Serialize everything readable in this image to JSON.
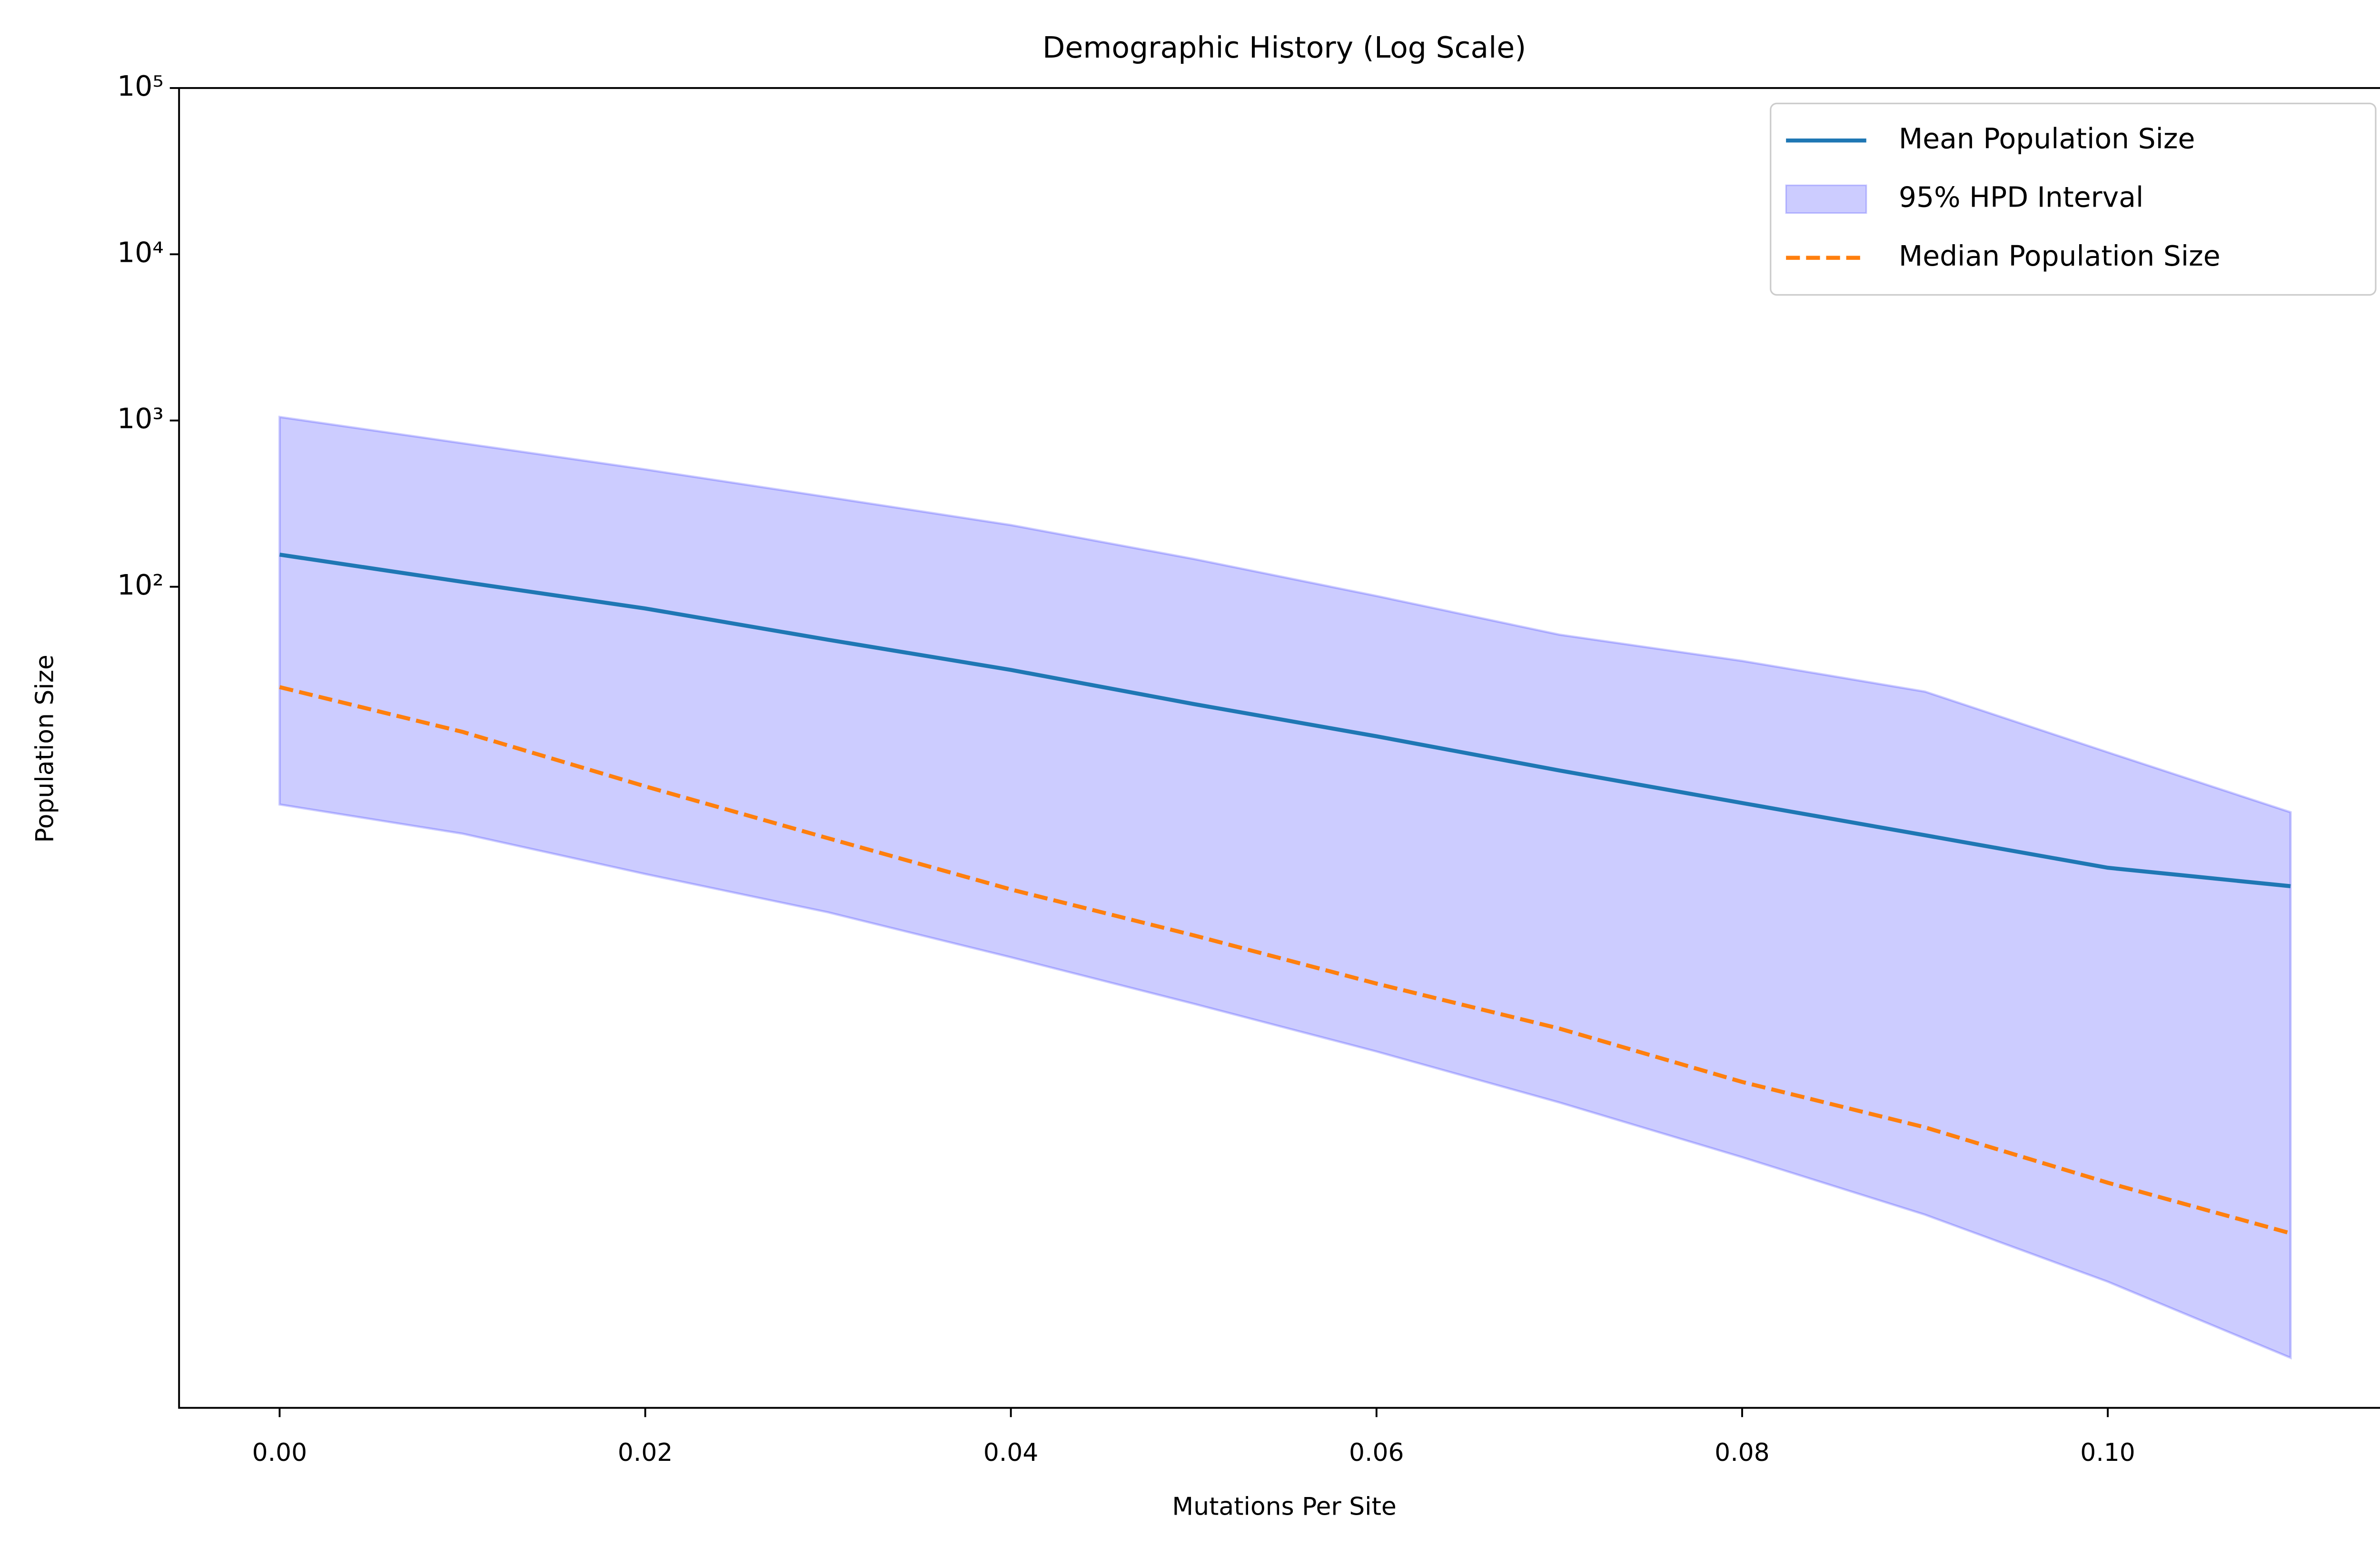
{
  "chart_data": {
    "type": "line",
    "title": "Demographic History (Log Scale)",
    "x_label": "Mutations Per Site",
    "y_label": "Population Size",
    "y_scale": "log",
    "legend": "upper right",
    "x": [
      0,
      0.01,
      0.02,
      0.03,
      0.04,
      0.05,
      0.06,
      0.07,
      0.08,
      0.09,
      0.1,
      0.11
    ],
    "series": [
      {
        "name": "Mean Population Size",
        "kind": "line",
        "color": "#1f77b4",
        "values": [
          156,
          107,
          74,
          48,
          31.6,
          19.7,
          12.6,
          7.85,
          5.0,
          3.2,
          2.04,
          1.58
        ]
      },
      {
        "name": "95% HPD Interval",
        "kind": "band",
        "color": "#0000ff",
        "upper": [
          1050,
          730,
          508,
          346,
          235,
          147,
          88,
          51.5,
          35.8,
          23.4,
          10.1,
          4.4
        ],
        "lower": [
          4.9,
          3.27,
          1.87,
          1.1,
          0.59,
          0.31,
          0.16,
          0.079,
          0.037,
          0.0167,
          0.0066,
          0.0023
        ]
      },
      {
        "name": "Median Population Size",
        "kind": "dashed",
        "color": "#ff7f0e",
        "values": [
          24.9,
          13.4,
          6.3,
          3.07,
          1.51,
          0.8,
          0.41,
          0.22,
          0.105,
          0.056,
          0.026,
          0.0129
        ]
      }
    ],
    "xlim": [
      -0.0055,
      0.1155
    ],
    "xticks": [
      {
        "value": 0,
        "label": "0.00"
      },
      {
        "value": 0.02,
        "label": "0.02"
      },
      {
        "value": 0.04,
        "label": "0.04"
      },
      {
        "value": 0.06,
        "label": "0.06"
      },
      {
        "value": 0.08,
        "label": "0.08"
      },
      {
        "value": 0.1,
        "label": "0.10"
      }
    ],
    "ylim": [
      0.00115,
      100000
    ],
    "yticks": [
      {
        "value": 100,
        "label": "10²"
      },
      {
        "value": 1000,
        "label": "10³"
      },
      {
        "value": 10000,
        "label": "10⁴"
      },
      {
        "value": 100000,
        "label": "10⁵"
      }
    ]
  }
}
